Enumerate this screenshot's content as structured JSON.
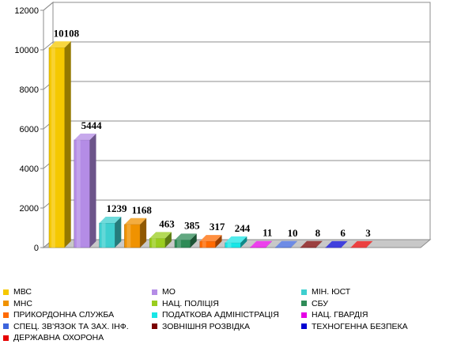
{
  "chart_data": {
    "type": "bar",
    "categories": [
      "МВС",
      "МО",
      "МІН. ЮСТ",
      "МНС",
      "НАЦ. ПОЛІЦІЯ",
      "СБУ",
      "ПРИКОРДОННА СЛУЖБА",
      "ПОДАТКОВА АДМІНІСТРАЦІЯ",
      "НАЦ. ГВАРДІЯ",
      "СПЕЦ. ЗВ'ЯЗОК ТА ЗАХ. ІНФ.",
      "ЗОВНІШНЯ РОЗВІДКА",
      "ТЕХНОГЕННА БЕЗПЕКА",
      "ДЕРЖАВНА ОХОРОНА"
    ],
    "values": [
      10108,
      5444,
      1239,
      1168,
      463,
      385,
      317,
      244,
      11,
      10,
      8,
      6,
      3
    ],
    "colors": [
      "#f5c800",
      "#b48ce6",
      "#3ecfcf",
      "#f09200",
      "#9acd1e",
      "#2e8b57",
      "#ff6a00",
      "#18e6e6",
      "#e600e6",
      "#3c64dc",
      "#7a0000",
      "#0000d2",
      "#e60000"
    ],
    "y_ticks": [
      "0",
      "2000",
      "4000",
      "6000",
      "8000",
      "10000",
      "12000"
    ],
    "ylim": [
      0,
      12000
    ],
    "grid": true,
    "legend": "bottom",
    "title": "",
    "xlabel": "",
    "ylabel": ""
  }
}
